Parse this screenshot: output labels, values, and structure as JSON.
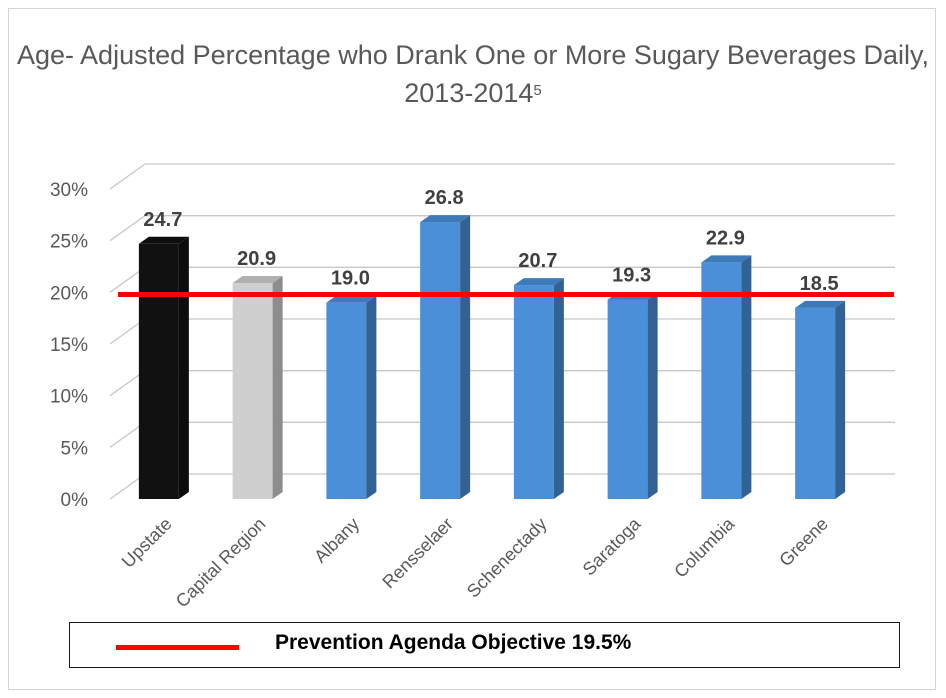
{
  "chart_data": {
    "type": "bar",
    "title": "Age- Adjusted Percentage who Drank One or More Sugary Beverages Daily, 2013-2014",
    "title_superscript": "5",
    "categories": [
      "Upstate",
      "Capital Region",
      "Albany",
      "Rensselaer",
      "Schenectady",
      "Saratoga",
      "Columbia",
      "Greene"
    ],
    "values": [
      24.7,
      20.9,
      19.0,
      26.8,
      20.7,
      19.3,
      22.9,
      18.5
    ],
    "data_labels": [
      "24.7",
      "20.9",
      "19.0",
      "26.8",
      "20.7",
      "19.3",
      "22.9",
      "18.5"
    ],
    "yticks": [
      "0%",
      "5%",
      "10%",
      "15%",
      "20%",
      "25%",
      "30%"
    ],
    "ytick_values": [
      0,
      5,
      10,
      15,
      20,
      25,
      30
    ],
    "ylim": [
      0,
      30
    ],
    "grid": true,
    "bar_colors": [
      "#111111",
      "#cfcfcf",
      "#4a90d9",
      "#4a90d9",
      "#4a90d9",
      "#4a90d9",
      "#4a90d9",
      "#4a90d9"
    ],
    "reference_line": {
      "label": "Prevention Agenda Objective 19.5%",
      "value": 19.5,
      "color": "#ff0000"
    },
    "legend_position": "bottom"
  }
}
